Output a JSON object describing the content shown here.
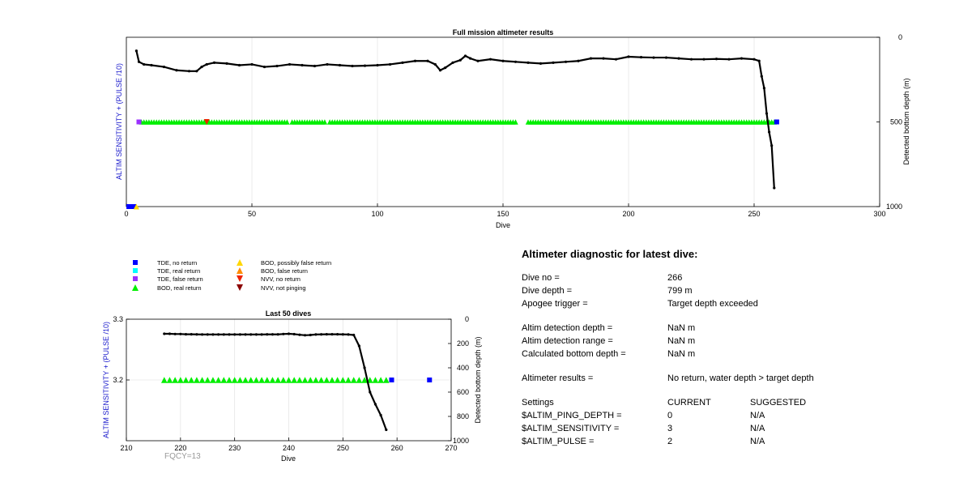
{
  "chart_data": [
    {
      "type": "scatter",
      "title": "Full mission altimeter results",
      "xlabel": "Dive",
      "ylabel": "ALTIM SENSITIVITY + (PULSE /10)",
      "y2label": "Detected bottom depth (m)",
      "xlim": [
        0,
        300
      ],
      "y2lim": [
        0,
        1000
      ],
      "y2_reversed": true,
      "xticks": [
        "0",
        "50",
        "100",
        "150",
        "200",
        "250",
        "300"
      ],
      "y2ticks": [
        "0",
        "500",
        "1000"
      ],
      "grid": "vertical",
      "depth_series": {
        "x": [
          4,
          5,
          7,
          10,
          15,
          20,
          25,
          28,
          30,
          32,
          35,
          40,
          45,
          50,
          55,
          60,
          65,
          70,
          75,
          80,
          85,
          90,
          95,
          100,
          105,
          110,
          115,
          120,
          123,
          125,
          127,
          130,
          133,
          135,
          137,
          140,
          145,
          150,
          155,
          160,
          165,
          170,
          175,
          180,
          185,
          190,
          195,
          200,
          205,
          210,
          215,
          220,
          225,
          230,
          235,
          240,
          245,
          250,
          252,
          253,
          254,
          255,
          256,
          257,
          258
        ],
        "y": [
          80,
          145,
          160,
          165,
          175,
          195,
          200,
          200,
          175,
          160,
          150,
          155,
          165,
          160,
          175,
          170,
          160,
          165,
          170,
          160,
          165,
          170,
          168,
          165,
          160,
          150,
          140,
          140,
          160,
          195,
          180,
          150,
          135,
          110,
          125,
          140,
          130,
          140,
          145,
          150,
          155,
          150,
          145,
          140,
          125,
          125,
          130,
          115,
          118,
          120,
          120,
          125,
          130,
          130,
          128,
          130,
          125,
          130,
          140,
          230,
          300,
          450,
          560,
          640,
          890
        ]
      },
      "tde_no_return": {
        "x": [
          1,
          2,
          3,
          259
        ],
        "y": [
          1000,
          1000,
          1000,
          500
        ]
      },
      "tde_false_return": {
        "x": [
          5
        ],
        "y": [
          500
        ]
      },
      "bod_possibly_false": {
        "x": [
          4
        ],
        "y": [
          1000
        ]
      },
      "nvv_no_return": {
        "x": [
          32
        ],
        "y": [
          500
        ]
      },
      "bod_real_return": {
        "start": 6,
        "end": 258,
        "gaps": [
          65,
          80,
          156,
          157,
          158,
          159
        ],
        "y": 500
      }
    },
    {
      "type": "scatter",
      "title": "Last 50 dives",
      "xlabel": "Dive",
      "ylabel": "ALTIM SENSITIVITY + (PULSE /10)",
      "y2label": "Detected bottom depth (m)",
      "xlim": [
        210,
        270
      ],
      "ylim": [
        3.1,
        3.3
      ],
      "y2lim": [
        0,
        1000
      ],
      "y2_reversed": true,
      "xticks": [
        "210",
        "220",
        "230",
        "240",
        "250",
        "260",
        "270"
      ],
      "yticks": [
        "3.3",
        "3.2"
      ],
      "y2ticks": [
        "0",
        "200",
        "400",
        "600",
        "800",
        "1000"
      ],
      "grid": "both",
      "depth_series": {
        "x": [
          217,
          218,
          219,
          220,
          221,
          222,
          223,
          224,
          225,
          226,
          227,
          228,
          229,
          230,
          231,
          232,
          233,
          234,
          235,
          236,
          237,
          238,
          239,
          240,
          241,
          242,
          243,
          244,
          245,
          246,
          247,
          248,
          249,
          250,
          251,
          252,
          253,
          254,
          255,
          256,
          257,
          258
        ],
        "y": [
          120,
          120,
          122,
          122,
          124,
          124,
          125,
          126,
          126,
          126,
          126,
          126,
          126,
          126,
          126,
          126,
          126,
          126,
          126,
          125,
          125,
          125,
          122,
          120,
          123,
          128,
          132,
          130,
          126,
          125,
          124,
          124,
          124,
          125,
          126,
          130,
          220,
          400,
          600,
          700,
          790,
          910
        ]
      },
      "bod_real_return": {
        "start": 217,
        "end": 258,
        "value": 3.2
      },
      "tde_no_return": {
        "x": [
          259,
          266
        ],
        "value": 3.2
      },
      "footer_label": "FQCY=13"
    }
  ],
  "legend": [
    {
      "label": "TDE, no return",
      "marker": "square",
      "color": "#0000ff"
    },
    {
      "label": "TDE, real return",
      "marker": "square",
      "color": "#00ffff"
    },
    {
      "label": "TDE, false return",
      "marker": "square",
      "color": "#9b30ff"
    },
    {
      "label": "BOD, real return",
      "marker": "triangle-up",
      "color": "#00ee00"
    },
    {
      "label": "BOD, possibly false return",
      "marker": "triangle-up",
      "color": "#ffd700"
    },
    {
      "label": "BOD, false return",
      "marker": "triangle-up",
      "color": "#ff8c00"
    },
    {
      "label": "NVV, no return",
      "marker": "triangle-down",
      "color": "#ee2200"
    },
    {
      "label": "NVV, not pinging",
      "marker": "triangle-down",
      "color": "#8b0000"
    }
  ],
  "colors": {
    "depth_line": "#000000",
    "axis_label_left": "#1a1acc",
    "footer": "#999999"
  },
  "diagnostic": {
    "title": "Altimeter diagnostic for latest dive:",
    "dive_no_label": "Dive no =",
    "dive_no_value": "266",
    "dive_depth_label": "Dive depth =",
    "dive_depth_value": "799 m",
    "apogee_label": "Apogee trigger =",
    "apogee_value": "Target depth exceeded",
    "det_depth_label": "Altim detection depth =",
    "det_depth_value": "NaN m",
    "det_range_label": "Altim detection range =",
    "det_range_value": "NaN m",
    "calc_depth_label": "Calculated bottom depth =",
    "calc_depth_value": "NaN m",
    "results_label": "Altimeter results =",
    "results_value": "No return, water depth > target depth",
    "settings_label": "Settings",
    "current_label": "CURRENT",
    "suggested_label": "SUGGESTED",
    "settings": [
      {
        "name": "$ALTIM_PING_DEPTH =",
        "current": "0",
        "suggested": "N/A"
      },
      {
        "name": "$ALTIM_SENSITIVITY =",
        "current": "3",
        "suggested": "N/A"
      },
      {
        "name": "$ALTIM_PULSE =",
        "current": "2",
        "suggested": "N/A"
      }
    ]
  }
}
